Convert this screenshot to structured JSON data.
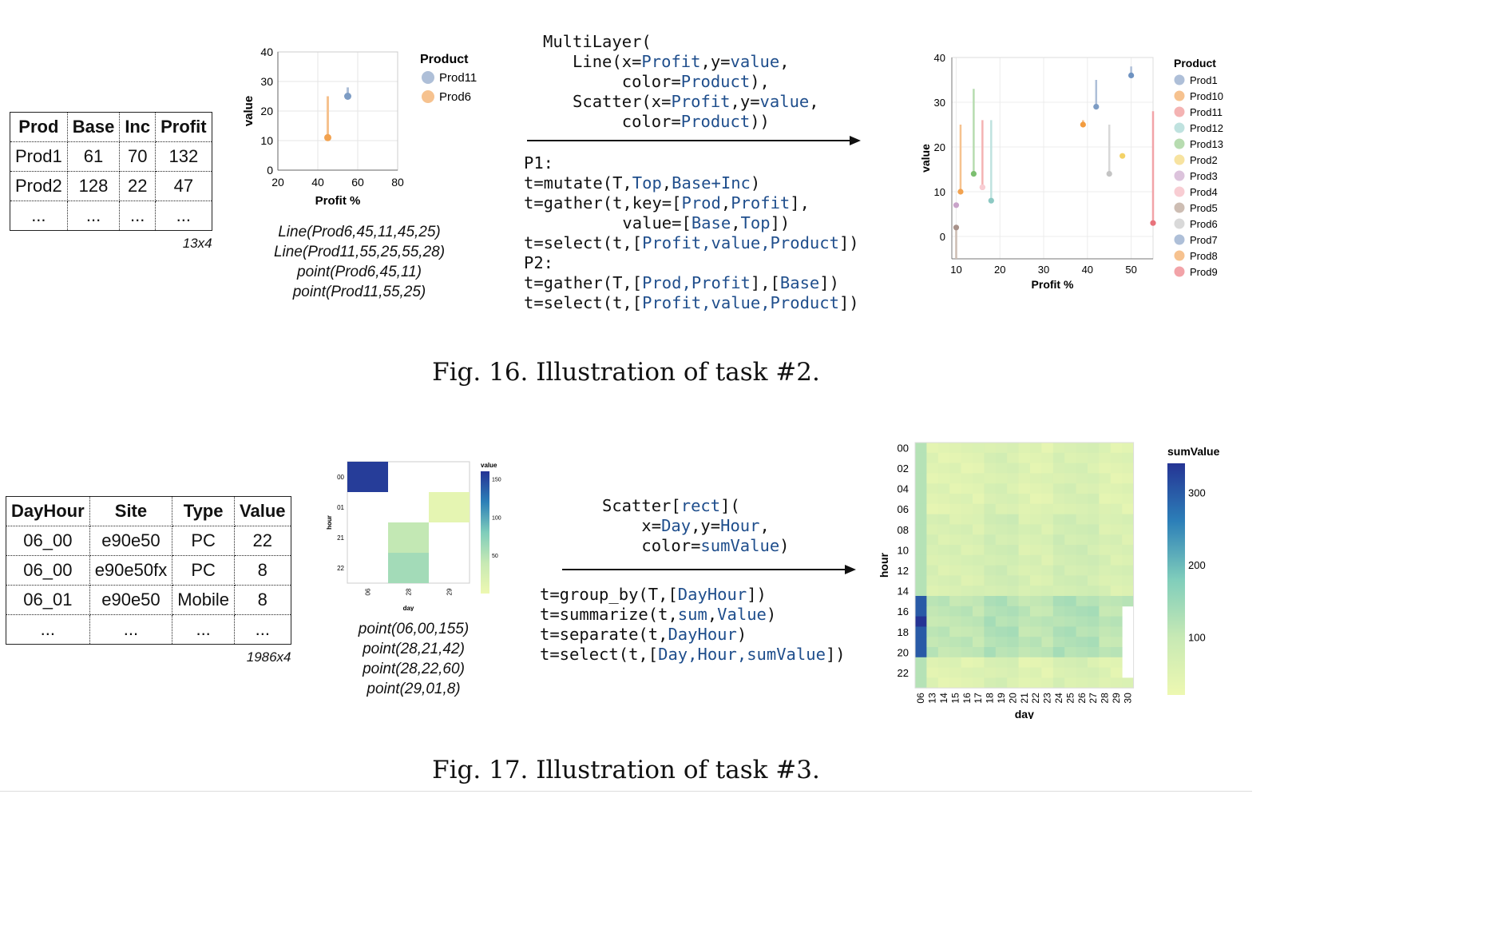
{
  "fig16": {
    "caption": "Fig. 16.  Illustration of task #2.",
    "table": {
      "headers": [
        "Prod",
        "Base",
        "Inc",
        "Profit"
      ],
      "rows": [
        [
          "Prod1",
          "61",
          "70",
          "132"
        ],
        [
          "Prod2",
          "128",
          "22",
          "47"
        ],
        [
          "...",
          "...",
          "...",
          "..."
        ]
      ],
      "dims": "13x4"
    },
    "small_chart": {
      "chart_data": {
        "type": "line",
        "xlabel": "Profit %",
        "ylabel": "value",
        "xlim": [
          20,
          80
        ],
        "ylim": [
          0,
          40
        ],
        "xticks": [
          "20",
          "40",
          "60",
          "80"
        ],
        "yticks": [
          "0",
          "10",
          "20",
          "30",
          "40"
        ],
        "legend_title": "Product",
        "series": [
          {
            "name": "Prod11",
            "color": "#aebfd8",
            "line": [
              [
                55,
                25
              ],
              [
                55,
                28
              ]
            ],
            "point": [
              55,
              25
            ]
          },
          {
            "name": "Prod6",
            "color": "#f6c28f",
            "line": [
              [
                45,
                11
              ],
              [
                45,
                25
              ]
            ],
            "point": [
              45,
              11
            ]
          }
        ]
      }
    },
    "encoding_lines": [
      "Line(Prod6,45,11,45,25)",
      "Line(Prod11,55,25,55,28)",
      "point(Prod6,45,11)",
      "point(Prod11,55,25)"
    ],
    "code_spec": [
      [
        [
          "MultiLayer(",
          ""
        ]
      ],
      [
        [
          "   Line(x=",
          ""
        ],
        [
          "Profit",
          "kw"
        ],
        [
          ",y=",
          ""
        ],
        [
          "value",
          "kw"
        ],
        [
          ",",
          ""
        ]
      ],
      [
        [
          "        color=",
          ""
        ],
        [
          "Product",
          "kw"
        ],
        [
          "),",
          ""
        ]
      ],
      [
        [
          "   Scatter(x=",
          ""
        ],
        [
          "Profit",
          "kw"
        ],
        [
          ",y=",
          ""
        ],
        [
          "value",
          "kw"
        ],
        [
          ",",
          ""
        ]
      ],
      [
        [
          "        color=",
          ""
        ],
        [
          "Product",
          "kw"
        ],
        [
          "))",
          ""
        ]
      ]
    ],
    "code_program": [
      [
        [
          "P1:",
          ""
        ]
      ],
      [
        [
          "t=mutate(T,",
          ""
        ],
        [
          "Top",
          "kw"
        ],
        [
          ",",
          ""
        ],
        [
          "Base+Inc",
          "kw"
        ],
        [
          ")",
          ""
        ]
      ],
      [
        [
          "t=gather(t,key=[",
          ""
        ],
        [
          "Prod",
          "kw"
        ],
        [
          ",",
          ""
        ],
        [
          "Profit",
          "kw"
        ],
        [
          "],",
          ""
        ]
      ],
      [
        [
          "          value=[",
          ""
        ],
        [
          "Base",
          "kw"
        ],
        [
          ",",
          ""
        ],
        [
          "Top",
          "kw"
        ],
        [
          "])",
          ""
        ]
      ],
      [
        [
          "t=select(t,[",
          ""
        ],
        [
          "Profit,value,Product",
          "kw"
        ],
        [
          "])",
          ""
        ]
      ],
      [
        [
          "P2:",
          ""
        ]
      ],
      [
        [
          "t=gather(T,[",
          ""
        ],
        [
          "Prod,Profit",
          "kw"
        ],
        [
          "],[",
          ""
        ],
        [
          "Base",
          "kw"
        ],
        [
          "])",
          ""
        ]
      ],
      [
        [
          "t=select(t,[",
          ""
        ],
        [
          "Profit,value,Product",
          "kw"
        ],
        [
          "])",
          ""
        ]
      ]
    ],
    "big_chart": {
      "chart_data": {
        "type": "line",
        "xlabel": "Profit %",
        "ylabel": "value",
        "xlim": [
          9,
          55
        ],
        "ylim": [
          -5,
          40
        ],
        "xticks": [
          "10",
          "20",
          "30",
          "40",
          "50"
        ],
        "yticks": [
          "0",
          "10",
          "20",
          "30",
          "40"
        ],
        "legend_title": "Product",
        "series": [
          {
            "name": "Prod1",
            "color": "#aebfd8",
            "x": 42,
            "y0": 29,
            "y1": 35,
            "point": 29,
            "pcolor": "#7d9cc4"
          },
          {
            "name": "Prod10",
            "color": "#f6c28f",
            "x": 11,
            "y0": 10,
            "y1": 25,
            "point": 10,
            "pcolor": "#f2a24f"
          },
          {
            "name": "Prod11",
            "color": "#f4b3b3",
            "x": 16,
            "y0": 11,
            "y1": 26,
            "point": 11,
            "pcolor": "#f4b3b3"
          },
          {
            "name": "Prod12",
            "color": "#bfe2df",
            "x": 18,
            "y0": 8,
            "y1": 26,
            "point": 8,
            "pcolor": "#8cc9c3"
          },
          {
            "name": "Prod13",
            "color": "#b7dcb0",
            "x": 14,
            "y0": 14,
            "y1": 33,
            "point": 14,
            "pcolor": "#7cbf70"
          },
          {
            "name": "Prod2",
            "color": "#f7e3a0",
            "x": 48,
            "y0": 18,
            "y1": 18,
            "point": 18,
            "pcolor": "#f3d267"
          },
          {
            "name": "Prod3",
            "color": "#dcc3dc",
            "x": 10,
            "y0": 7,
            "y1": 7,
            "point": 7,
            "pcolor": "#c9a3c9"
          },
          {
            "name": "Prod4",
            "color": "#f8cdd3",
            "x": 16,
            "y0": 11,
            "y1": 11,
            "point": 11,
            "pcolor": "#f8cdd3"
          },
          {
            "name": "Prod5",
            "color": "#cdbdb3",
            "x": 10,
            "y0": -5,
            "y1": 2,
            "point": 2,
            "pcolor": "#a8928a"
          },
          {
            "name": "Prod6",
            "color": "#d9d9d9",
            "x": 45,
            "y0": 14,
            "y1": 25,
            "point": 14,
            "pcolor": "#c4c4c4"
          },
          {
            "name": "Prod7",
            "color": "#aebfd8",
            "x": 50,
            "y0": 36,
            "y1": 38,
            "point": 36,
            "pcolor": "#6e92c1"
          },
          {
            "name": "Prod8",
            "color": "#f6c28f",
            "x": 39,
            "y0": 25,
            "y1": 26,
            "point": 25,
            "pcolor": "#f29b3e"
          },
          {
            "name": "Prod9",
            "color": "#f2a3a8",
            "x": 55,
            "y0": 3,
            "y1": 28,
            "point": 3,
            "pcolor": "#e8737b"
          }
        ]
      }
    }
  },
  "fig17": {
    "caption": "Fig. 17.  Illustration of task #3.",
    "table": {
      "headers": [
        "DayHour",
        "Site",
        "Type",
        "Value"
      ],
      "rows": [
        [
          "06_00",
          "e90e50",
          "PC",
          "22"
        ],
        [
          "06_00",
          "e90e50fx",
          "PC",
          "8"
        ],
        [
          "06_01",
          "e90e50",
          "Mobile",
          "8"
        ],
        [
          "...",
          "...",
          "...",
          "..."
        ]
      ],
      "dims": "1986x4"
    },
    "small_chart": {
      "chart_data": {
        "type": "heatmap",
        "xlabel": "day",
        "ylabel": "hour",
        "x": [
          "06",
          "28",
          "29"
        ],
        "y": [
          "00",
          "01",
          "21",
          "22"
        ],
        "legend_title": "value",
        "legend_ticks": [
          "150",
          "100",
          "50"
        ],
        "cells": [
          {
            "x": "06",
            "y": "00",
            "value": 155
          },
          {
            "x": "28",
            "y": "21",
            "value": 42
          },
          {
            "x": "28",
            "y": "22",
            "value": 60
          },
          {
            "x": "29",
            "y": "01",
            "value": 8
          }
        ]
      }
    },
    "encoding_lines": [
      "point(06,00,155)",
      "point(28,21,42)",
      "point(28,22,60)",
      "point(29,01,8)"
    ],
    "code_spec": [
      [
        [
          "Scatter[",
          ""
        ],
        [
          "rect",
          "kw"
        ],
        [
          "](",
          ""
        ]
      ],
      [
        [
          "    x=",
          ""
        ],
        [
          "Day",
          "kw"
        ],
        [
          ",y=",
          ""
        ],
        [
          "Hour",
          "kw"
        ],
        [
          ",",
          ""
        ]
      ],
      [
        [
          "    color=",
          ""
        ],
        [
          "sumValue",
          "kw"
        ],
        [
          ")",
          ""
        ]
      ]
    ],
    "code_program": [
      [
        [
          "t=group_by(T,[",
          ""
        ],
        [
          "DayHour",
          "kw"
        ],
        [
          "])",
          ""
        ]
      ],
      [
        [
          "t=summarize(t,",
          ""
        ],
        [
          "sum",
          "kw"
        ],
        [
          ",",
          ""
        ],
        [
          "Value",
          "kw"
        ],
        [
          ")",
          ""
        ]
      ],
      [
        [
          "t=separate(t,",
          ""
        ],
        [
          "DayHour",
          "kw"
        ],
        [
          ")",
          ""
        ]
      ],
      [
        [
          "t=select(t,[",
          ""
        ],
        [
          "Day,Hour,sumValue",
          "kw"
        ],
        [
          "])",
          ""
        ]
      ]
    ],
    "big_chart": {
      "chart_data": {
        "type": "heatmap",
        "xlabel": "day",
        "ylabel": "hour",
        "x": [
          "06",
          "13",
          "14",
          "15",
          "16",
          "17",
          "18",
          "19",
          "20",
          "21",
          "22",
          "23",
          "24",
          "25",
          "26",
          "27",
          "28",
          "29",
          "30"
        ],
        "y": [
          "00",
          "01",
          "02",
          "03",
          "04",
          "05",
          "06",
          "07",
          "08",
          "09",
          "10",
          "11",
          "12",
          "13",
          "14",
          "15",
          "16",
          "17",
          "18",
          "19",
          "20",
          "21",
          "22",
          "23"
        ],
        "yticks": [
          "00",
          "02",
          "04",
          "06",
          "08",
          "10",
          "12",
          "14",
          "16",
          "18",
          "20",
          "22"
        ],
        "legend_title": "sumValue",
        "legend_ticks": [
          "300",
          "200",
          "100"
        ],
        "vrange": [
          20,
          340
        ]
      }
    }
  }
}
